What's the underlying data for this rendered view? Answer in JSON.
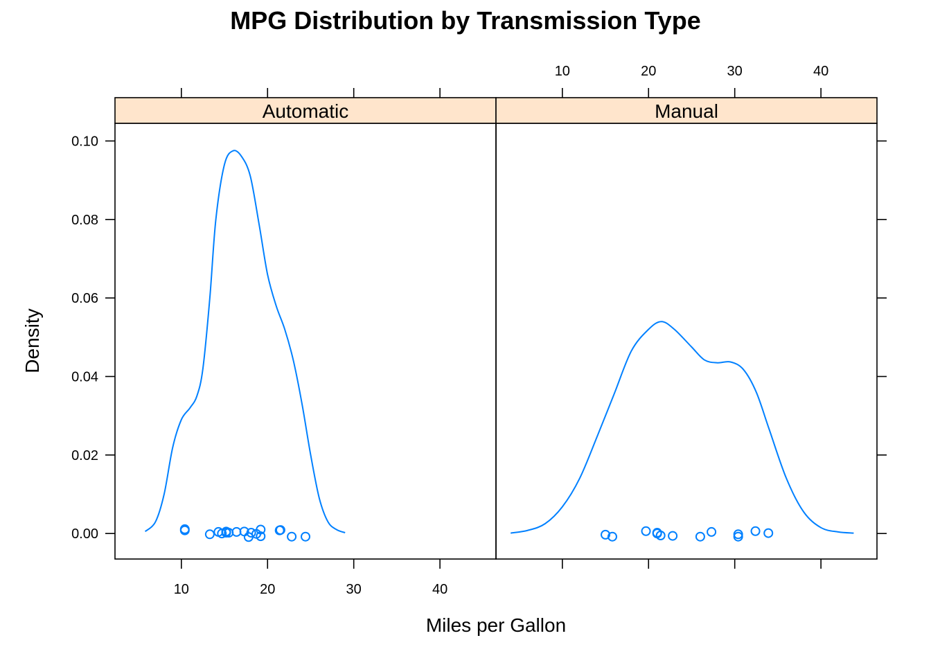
{
  "chart_data": {
    "type": "density",
    "title": "MPG Distribution by Transmission Type",
    "xlabel": "Miles per Gallon",
    "ylabel": "Density",
    "xlim": [
      2.3,
      46.5
    ],
    "ylim": [
      -0.0065,
      0.1045
    ],
    "x_ticks": [
      10,
      20,
      30,
      40
    ],
    "y_ticks": [
      0.0,
      0.02,
      0.04,
      0.06,
      0.08,
      0.1
    ],
    "y_tick_labels": [
      "0.00",
      "0.02",
      "0.04",
      "0.06",
      "0.08",
      "0.10"
    ],
    "colors": {
      "series": "#0080ff",
      "strip": "#ffe5cc"
    },
    "panels": [
      {
        "name": "Automatic",
        "density": [
          [
            5.8,
            0.0005
          ],
          [
            7.0,
            0.003
          ],
          [
            8.0,
            0.01
          ],
          [
            9.0,
            0.022
          ],
          [
            10.0,
            0.029
          ],
          [
            11.0,
            0.032
          ],
          [
            11.8,
            0.035
          ],
          [
            12.5,
            0.042
          ],
          [
            13.3,
            0.06
          ],
          [
            14.0,
            0.08
          ],
          [
            15.0,
            0.094
          ],
          [
            16.0,
            0.0975
          ],
          [
            17.0,
            0.096
          ],
          [
            18.0,
            0.091
          ],
          [
            19.0,
            0.079
          ],
          [
            20.0,
            0.066
          ],
          [
            21.0,
            0.058
          ],
          [
            22.0,
            0.052
          ],
          [
            23.0,
            0.044
          ],
          [
            24.0,
            0.033
          ],
          [
            25.0,
            0.02
          ],
          [
            26.0,
            0.009
          ],
          [
            27.0,
            0.003
          ],
          [
            28.0,
            0.001
          ],
          [
            29.0,
            0.0002
          ]
        ],
        "points": [
          [
            10.4,
            0.0008
          ],
          [
            10.4,
            0.0011
          ],
          [
            13.3,
            -0.0002
          ],
          [
            14.3,
            0.0004
          ],
          [
            14.7,
            0.0
          ],
          [
            15.2,
            0.0005
          ],
          [
            15.2,
            0.0002
          ],
          [
            15.5,
            0.0002
          ],
          [
            16.4,
            0.0004
          ],
          [
            17.3,
            0.0005
          ],
          [
            17.8,
            -0.0009
          ],
          [
            18.1,
            0.0002
          ],
          [
            18.7,
            -0.0001
          ],
          [
            19.2,
            -0.0007
          ],
          [
            19.2,
            0.001
          ],
          [
            21.4,
            0.0008
          ],
          [
            21.5,
            0.0009
          ],
          [
            22.8,
            -0.0008
          ],
          [
            24.4,
            -0.0008
          ]
        ]
      },
      {
        "name": "Manual",
        "density": [
          [
            4.0,
            0.0001
          ],
          [
            6.0,
            0.0008
          ],
          [
            8.0,
            0.0025
          ],
          [
            10.0,
            0.0068
          ],
          [
            12.0,
            0.014
          ],
          [
            14.0,
            0.0245
          ],
          [
            16.0,
            0.0355
          ],
          [
            18.0,
            0.0465
          ],
          [
            20.0,
            0.052
          ],
          [
            21.5,
            0.054
          ],
          [
            23.0,
            0.052
          ],
          [
            25.0,
            0.0475
          ],
          [
            26.5,
            0.0442
          ],
          [
            28.0,
            0.0435
          ],
          [
            29.5,
            0.0437
          ],
          [
            31.0,
            0.0418
          ],
          [
            32.5,
            0.036
          ],
          [
            34.0,
            0.0265
          ],
          [
            36.0,
            0.014
          ],
          [
            38.0,
            0.0055
          ],
          [
            40.0,
            0.0015
          ],
          [
            42.0,
            0.0004
          ],
          [
            43.8,
            0.0001
          ]
        ],
        "points": [
          [
            15.0,
            -0.0003
          ],
          [
            15.8,
            -0.0008
          ],
          [
            19.7,
            0.0006
          ],
          [
            21.0,
            0.0002
          ],
          [
            21.0,
            0.0
          ],
          [
            21.4,
            -0.0005
          ],
          [
            22.8,
            -0.0006
          ],
          [
            26.0,
            -0.0008
          ],
          [
            27.3,
            0.0004
          ],
          [
            30.4,
            -0.0002
          ],
          [
            30.4,
            -0.0008
          ],
          [
            32.4,
            0.0006
          ],
          [
            33.9,
            0.0001
          ]
        ]
      }
    ]
  }
}
